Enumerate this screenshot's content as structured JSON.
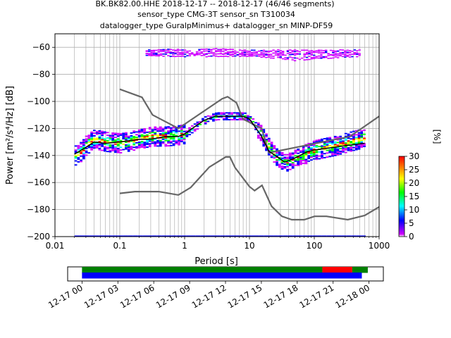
{
  "chart_data": {
    "type": "heatmap",
    "title_lines": [
      "BK.BK82.00.HHE   2018-12-17 -- 2018-12-17  (46/46 segments)",
      "sensor_type CMG-3T sensor_sn T310034",
      "datalogger_type GuralpMinimus+ datalogger_sn MINP-DF59"
    ],
    "xlabel": "Period [s]",
    "ylabel": "Power [m²/s⁴/Hz] [dB]",
    "x_scale": "log",
    "xlim": [
      0.01,
      1000
    ],
    "ylim": [
      -200,
      -50
    ],
    "x_ticks": [
      {
        "v": 0.01,
        "label": "0.01"
      },
      {
        "v": 0.1,
        "label": "0.1"
      },
      {
        "v": 1,
        "label": "1"
      },
      {
        "v": 10,
        "label": "10"
      },
      {
        "v": 100,
        "label": "100"
      },
      {
        "v": 1000,
        "label": "1000"
      }
    ],
    "y_ticks": [
      {
        "v": -60,
        "label": "−60"
      },
      {
        "v": -80,
        "label": "−80"
      },
      {
        "v": -100,
        "label": "−100"
      },
      {
        "v": -120,
        "label": "−120"
      },
      {
        "v": -140,
        "label": "−140"
      },
      {
        "v": -160,
        "label": "−160"
      },
      {
        "v": -180,
        "label": "−180"
      },
      {
        "v": -200,
        "label": "−200"
      }
    ],
    "grid": true,
    "colorbar": {
      "label": "[%]",
      "range": [
        0,
        30
      ],
      "ticks": [
        {
          "v": 0,
          "label": "0"
        },
        {
          "v": 5,
          "label": "5"
        },
        {
          "v": 10,
          "label": "10"
        },
        {
          "v": 15,
          "label": "15"
        },
        {
          "v": 20,
          "label": "20"
        },
        {
          "v": 25,
          "label": "25"
        },
        {
          "v": 30,
          "label": "30"
        }
      ],
      "stops": [
        "#ffffff",
        "#d000ff",
        "#0000ff",
        "#00ffff",
        "#00ff00",
        "#ffff00",
        "#ff8000",
        "#ff0000"
      ]
    },
    "noise_model_high": [
      [
        0.1,
        -91
      ],
      [
        0.22,
        -97
      ],
      [
        0.32,
        -110
      ],
      [
        0.8,
        -120
      ],
      [
        3.8,
        -98
      ],
      [
        4.6,
        -96.5
      ],
      [
        6.3,
        -101
      ],
      [
        7.9,
        -113
      ],
      [
        15.4,
        -120
      ],
      [
        20,
        -138
      ],
      [
        354.8,
        -126
      ],
      [
        1000,
        -111
      ]
    ],
    "noise_model_low": [
      [
        0.1,
        -168
      ],
      [
        0.17,
        -166.7
      ],
      [
        0.4,
        -166.7
      ],
      [
        0.8,
        -169.2
      ],
      [
        1.24,
        -163.7
      ],
      [
        2.4,
        -148.6
      ],
      [
        4.3,
        -141.1
      ],
      [
        5,
        -141.1
      ],
      [
        6,
        -149
      ],
      [
        10,
        -163
      ],
      [
        12,
        -166
      ],
      [
        15.6,
        -162.1
      ],
      [
        21.9,
        -177.5
      ],
      [
        31.6,
        -185
      ],
      [
        45,
        -187.5
      ],
      [
        70,
        -187.5
      ],
      [
        101,
        -185
      ],
      [
        154,
        -185
      ],
      [
        328,
        -187.5
      ],
      [
        600,
        -184.4
      ],
      [
        1000,
        -178
      ]
    ],
    "mean_curve": [
      [
        0.02,
        -139
      ],
      [
        0.03,
        -134
      ],
      [
        0.04,
        -130
      ],
      [
        0.06,
        -131
      ],
      [
        0.1,
        -130
      ],
      [
        0.2,
        -128
      ],
      [
        0.3,
        -128
      ],
      [
        0.5,
        -126
      ],
      [
        0.8,
        -126
      ],
      [
        1,
        -124
      ],
      [
        1.5,
        -118
      ],
      [
        2,
        -114
      ],
      [
        3,
        -111
      ],
      [
        5,
        -111
      ],
      [
        8,
        -111
      ],
      [
        10,
        -113
      ],
      [
        15,
        -125
      ],
      [
        20,
        -137
      ],
      [
        25,
        -140
      ],
      [
        35,
        -145
      ],
      [
        50,
        -142
      ],
      [
        80,
        -137
      ],
      [
        100,
        -136
      ],
      [
        200,
        -134
      ],
      [
        400,
        -132
      ],
      [
        600,
        -131
      ]
    ],
    "psd_distribution": [
      [
        0.02,
        -140
      ],
      [
        0.025,
        -137
      ],
      [
        0.03,
        -132
      ],
      [
        0.04,
        -128
      ],
      [
        0.06,
        -130
      ],
      [
        0.1,
        -131
      ],
      [
        0.2,
        -128
      ],
      [
        0.3,
        -126
      ],
      [
        0.5,
        -126
      ],
      [
        0.8,
        -125
      ],
      [
        1,
        -124
      ],
      [
        1.5,
        -118
      ],
      [
        2,
        -114
      ],
      [
        3,
        -111
      ],
      [
        5,
        -111
      ],
      [
        8,
        -111
      ],
      [
        10,
        -113
      ],
      [
        15,
        -125
      ],
      [
        20,
        -135
      ],
      [
        25,
        -141
      ],
      [
        35,
        -146
      ],
      [
        50,
        -142
      ],
      [
        80,
        -138
      ],
      [
        100,
        -136
      ],
      [
        200,
        -133
      ],
      [
        400,
        -129
      ],
      [
        600,
        -127
      ]
    ],
    "outlier_band": [
      [
        0.25,
        -62
      ],
      [
        0.5,
        -61
      ],
      [
        1,
        -62
      ],
      [
        3,
        -61
      ],
      [
        8,
        -62
      ],
      [
        20,
        -62
      ],
      [
        50,
        -62
      ],
      [
        100,
        -62
      ],
      [
        200,
        -62
      ],
      [
        500,
        -62
      ]
    ],
    "outlier_band_low": [
      [
        0.25,
        -66
      ],
      [
        0.5,
        -66
      ],
      [
        1,
        -66
      ],
      [
        3,
        -66
      ],
      [
        8,
        -66
      ],
      [
        20,
        -67
      ],
      [
        50,
        -69
      ],
      [
        100,
        -68
      ],
      [
        200,
        -67
      ],
      [
        500,
        -66
      ]
    ]
  },
  "timeline": {
    "ticks": [
      {
        "hour": 0,
        "label": "12-17 00"
      },
      {
        "hour": 3,
        "label": "12-17 03"
      },
      {
        "hour": 6,
        "label": "12-17 06"
      },
      {
        "hour": 9,
        "label": "12-17 09"
      },
      {
        "hour": 12,
        "label": "12-17 12"
      },
      {
        "hour": 15,
        "label": "12-17 15"
      },
      {
        "hour": 18,
        "label": "12-17 18"
      },
      {
        "hour": 21,
        "label": "12-17 21"
      },
      {
        "hour": 24,
        "label": "12-18 00"
      }
    ],
    "xlim_hours": [
      -1.2,
      25.2
    ],
    "bars": [
      {
        "row": "top",
        "start": 0,
        "end": 20.1,
        "color": "#008000"
      },
      {
        "row": "top",
        "start": 20.1,
        "end": 22.6,
        "color": "#ff0000"
      },
      {
        "row": "top",
        "start": 22.6,
        "end": 23.9,
        "color": "#008000"
      },
      {
        "row": "bottom",
        "start": 0,
        "end": 23.4,
        "color": "#0000ff"
      }
    ]
  }
}
